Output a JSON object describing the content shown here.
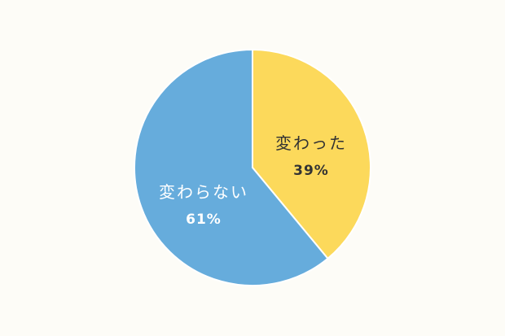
{
  "chart_data": {
    "type": "pie",
    "start": "top",
    "direction": "clockwise",
    "slices": [
      {
        "label": "変わった",
        "value": 39,
        "value_label": "39%",
        "color": "#fcd95b",
        "text_color": "#333333"
      },
      {
        "label": "変わらない",
        "value": 61,
        "value_label": "61%",
        "color": "#66acdc",
        "text_color": "#ffffff"
      }
    ],
    "background": "#fdfcf7"
  }
}
